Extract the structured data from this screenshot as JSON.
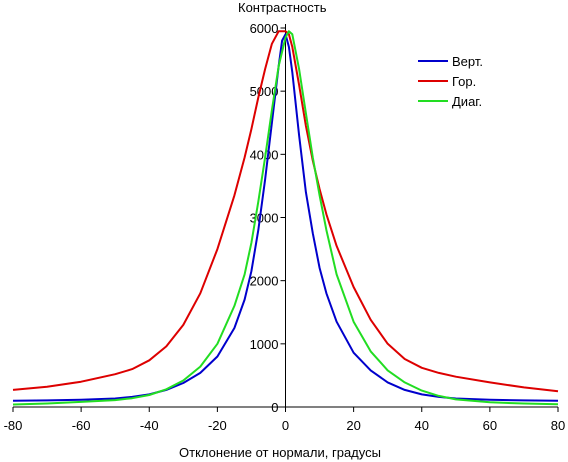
{
  "chart_data": {
    "type": "line",
    "title": "",
    "ylabel": "Контрастность",
    "xlabel": "Отклонение от нормали, градусы",
    "xlim": [
      -80,
      80
    ],
    "ylim": [
      0,
      6000
    ],
    "x_ticks": [
      -80,
      -60,
      -40,
      -20,
      0,
      20,
      40,
      60,
      80
    ],
    "y_ticks": [
      0,
      1000,
      2000,
      3000,
      4000,
      5000,
      6000
    ],
    "x_tick_labels": [
      "-80",
      "-60",
      "-40",
      "-20",
      "0",
      "20",
      "40",
      "60",
      "80"
    ],
    "y_tick_labels": [
      "0",
      "1000",
      "2000",
      "3000",
      "4000",
      "5000",
      "6000"
    ],
    "grid": false,
    "legend_position": "top-right",
    "series": [
      {
        "name": "Верт.",
        "color": "#0000cc",
        "points": [
          [
            -80,
            100
          ],
          [
            -70,
            105
          ],
          [
            -60,
            115
          ],
          [
            -50,
            135
          ],
          [
            -45,
            160
          ],
          [
            -40,
            200
          ],
          [
            -35,
            270
          ],
          [
            -30,
            380
          ],
          [
            -25,
            540
          ],
          [
            -20,
            800
          ],
          [
            -15,
            1250
          ],
          [
            -12,
            1700
          ],
          [
            -10,
            2150
          ],
          [
            -8,
            2800
          ],
          [
            -6,
            3600
          ],
          [
            -4,
            4500
          ],
          [
            -2,
            5400
          ],
          [
            -1,
            5800
          ],
          [
            0,
            5900
          ],
          [
            1,
            5700
          ],
          [
            2,
            5300
          ],
          [
            4,
            4300
          ],
          [
            6,
            3400
          ],
          [
            8,
            2750
          ],
          [
            10,
            2200
          ],
          [
            12,
            1800
          ],
          [
            15,
            1350
          ],
          [
            20,
            860
          ],
          [
            25,
            580
          ],
          [
            30,
            390
          ],
          [
            35,
            270
          ],
          [
            40,
            200
          ],
          [
            45,
            160
          ],
          [
            50,
            135
          ],
          [
            60,
            115
          ],
          [
            70,
            105
          ],
          [
            80,
            100
          ]
        ]
      },
      {
        "name": "Гор.",
        "color": "#dd0000",
        "points": [
          [
            -80,
            270
          ],
          [
            -70,
            320
          ],
          [
            -60,
            400
          ],
          [
            -50,
            520
          ],
          [
            -45,
            600
          ],
          [
            -40,
            740
          ],
          [
            -35,
            960
          ],
          [
            -30,
            1300
          ],
          [
            -25,
            1800
          ],
          [
            -20,
            2500
          ],
          [
            -15,
            3350
          ],
          [
            -12,
            3950
          ],
          [
            -10,
            4400
          ],
          [
            -8,
            4900
          ],
          [
            -6,
            5350
          ],
          [
            -4,
            5750
          ],
          [
            -2,
            5950
          ],
          [
            0,
            5950
          ],
          [
            1,
            5900
          ],
          [
            2,
            5700
          ],
          [
            4,
            5100
          ],
          [
            6,
            4450
          ],
          [
            8,
            3900
          ],
          [
            10,
            3450
          ],
          [
            12,
            3050
          ],
          [
            15,
            2550
          ],
          [
            20,
            1900
          ],
          [
            25,
            1380
          ],
          [
            30,
            1000
          ],
          [
            35,
            760
          ],
          [
            40,
            620
          ],
          [
            45,
            540
          ],
          [
            50,
            480
          ],
          [
            60,
            390
          ],
          [
            70,
            310
          ],
          [
            80,
            250
          ]
        ]
      },
      {
        "name": "Диаг.",
        "color": "#22dd22",
        "points": [
          [
            -80,
            40
          ],
          [
            -70,
            55
          ],
          [
            -60,
            80
          ],
          [
            -50,
            110
          ],
          [
            -45,
            140
          ],
          [
            -40,
            190
          ],
          [
            -35,
            280
          ],
          [
            -30,
            420
          ],
          [
            -25,
            640
          ],
          [
            -20,
            1000
          ],
          [
            -15,
            1600
          ],
          [
            -12,
            2100
          ],
          [
            -10,
            2600
          ],
          [
            -8,
            3250
          ],
          [
            -6,
            3950
          ],
          [
            -4,
            4700
          ],
          [
            -2,
            5400
          ],
          [
            0,
            5850
          ],
          [
            1,
            5950
          ],
          [
            2,
            5900
          ],
          [
            4,
            5350
          ],
          [
            6,
            4650
          ],
          [
            8,
            3950
          ],
          [
            10,
            3350
          ],
          [
            12,
            2800
          ],
          [
            15,
            2100
          ],
          [
            20,
            1350
          ],
          [
            25,
            880
          ],
          [
            30,
            580
          ],
          [
            35,
            390
          ],
          [
            40,
            260
          ],
          [
            45,
            175
          ],
          [
            50,
            120
          ],
          [
            60,
            75
          ],
          [
            70,
            55
          ],
          [
            80,
            45
          ]
        ]
      }
    ]
  }
}
